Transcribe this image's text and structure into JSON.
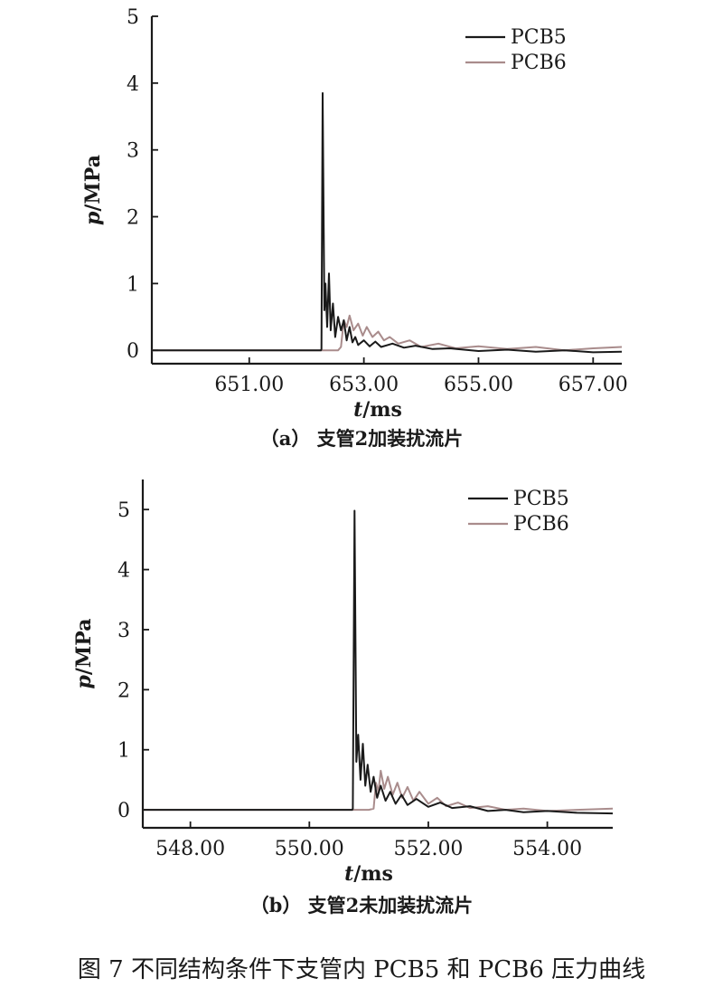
{
  "figure_caption": "图 7   不同结构条件下支管内 PCB5 和 PCB6 压力曲线",
  "chart_data": [
    {
      "type": "line",
      "caption": "（a） 支管2加装扰流片",
      "xlabel_italic": "t",
      "xlabel_unit": "/ms",
      "ylabel_italic": "p",
      "ylabel_unit": "/MPa",
      "xlim": [
        649.3,
        657.5
      ],
      "ylim": [
        -0.2,
        5.0
      ],
      "xticks": [
        651.0,
        653.0,
        655.0,
        657.0
      ],
      "xtick_labels": [
        "651.00",
        "653.00",
        "655.00",
        "657.00"
      ],
      "yticks": [
        0,
        1,
        2,
        3,
        4,
        5
      ],
      "ytick_labels": [
        "0",
        "1",
        "2",
        "3",
        "4",
        "5"
      ],
      "legend_position": "top-right",
      "series": [
        {
          "name": "PCB5",
          "color": "#1a1a1a",
          "points": [
            [
              649.3,
              0
            ],
            [
              652.25,
              0
            ],
            [
              652.26,
              0.02
            ],
            [
              652.28,
              3.85
            ],
            [
              652.31,
              0.6
            ],
            [
              652.33,
              1.0
            ],
            [
              652.36,
              0.35
            ],
            [
              652.39,
              1.15
            ],
            [
              652.42,
              0.3
            ],
            [
              652.46,
              0.7
            ],
            [
              652.5,
              0.2
            ],
            [
              652.55,
              0.5
            ],
            [
              652.6,
              0.3
            ],
            [
              652.65,
              0.45
            ],
            [
              652.7,
              0.15
            ],
            [
              652.75,
              0.35
            ],
            [
              652.8,
              0.12
            ],
            [
              652.85,
              0.2
            ],
            [
              652.9,
              0.08
            ],
            [
              653.0,
              0.15
            ],
            [
              653.1,
              0.06
            ],
            [
              653.2,
              0.13
            ],
            [
              653.3,
              0.05
            ],
            [
              653.5,
              0.1
            ],
            [
              653.7,
              0.04
            ],
            [
              653.9,
              0.07
            ],
            [
              654.2,
              0.02
            ],
            [
              654.5,
              0.03
            ],
            [
              655.0,
              -0.01
            ],
            [
              655.5,
              0.01
            ],
            [
              656.0,
              -0.02
            ],
            [
              656.5,
              0.0
            ],
            [
              657.0,
              -0.03
            ],
            [
              657.5,
              -0.02
            ]
          ]
        },
        {
          "name": "PCB6",
          "color": "#a98c8c",
          "points": [
            [
              649.3,
              0.0
            ],
            [
              652.3,
              0.0
            ],
            [
              652.55,
              0.0
            ],
            [
              652.6,
              0.05
            ],
            [
              652.65,
              0.45
            ],
            [
              652.7,
              0.35
            ],
            [
              652.75,
              0.52
            ],
            [
              652.82,
              0.3
            ],
            [
              652.9,
              0.4
            ],
            [
              652.98,
              0.22
            ],
            [
              653.05,
              0.35
            ],
            [
              653.15,
              0.2
            ],
            [
              653.25,
              0.28
            ],
            [
              653.35,
              0.15
            ],
            [
              653.45,
              0.2
            ],
            [
              653.6,
              0.1
            ],
            [
              653.8,
              0.15
            ],
            [
              654.0,
              0.05
            ],
            [
              654.3,
              0.1
            ],
            [
              654.6,
              0.03
            ],
            [
              655.0,
              0.06
            ],
            [
              655.5,
              0.02
            ],
            [
              656.0,
              0.05
            ],
            [
              656.5,
              0.0
            ],
            [
              657.0,
              0.03
            ],
            [
              657.5,
              0.05
            ]
          ]
        }
      ]
    },
    {
      "type": "line",
      "caption": "（b） 支管2未加装扰流片",
      "xlabel_italic": "t",
      "xlabel_unit": "/ms",
      "ylabel_italic": "p",
      "ylabel_unit": "/MPa",
      "xlim": [
        547.2,
        555.1
      ],
      "ylim": [
        -0.3,
        5.5
      ],
      "xticks": [
        548.0,
        550.0,
        552.0,
        554.0
      ],
      "xtick_labels": [
        "548.00",
        "550.00",
        "552.00",
        "554.00"
      ],
      "yticks": [
        0,
        1,
        2,
        3,
        4,
        5
      ],
      "ytick_labels": [
        "0",
        "1",
        "2",
        "3",
        "4",
        "5"
      ],
      "legend_position": "top-right",
      "series": [
        {
          "name": "PCB5",
          "color": "#1a1a1a",
          "points": [
            [
              547.2,
              0
            ],
            [
              550.72,
              0
            ],
            [
              550.73,
              0.02
            ],
            [
              550.76,
              4.98
            ],
            [
              550.79,
              0.8
            ],
            [
              550.82,
              1.25
            ],
            [
              550.86,
              0.5
            ],
            [
              550.9,
              1.1
            ],
            [
              550.94,
              0.4
            ],
            [
              550.98,
              0.75
            ],
            [
              551.03,
              0.3
            ],
            [
              551.08,
              0.55
            ],
            [
              551.14,
              0.2
            ],
            [
              551.2,
              0.4
            ],
            [
              551.28,
              0.15
            ],
            [
              551.36,
              0.3
            ],
            [
              551.45,
              0.1
            ],
            [
              551.55,
              0.25
            ],
            [
              551.65,
              0.08
            ],
            [
              551.8,
              0.18
            ],
            [
              552.0,
              0.05
            ],
            [
              552.2,
              0.12
            ],
            [
              552.4,
              0.03
            ],
            [
              552.7,
              0.06
            ],
            [
              553.0,
              -0.02
            ],
            [
              553.3,
              0.0
            ],
            [
              553.6,
              -0.04
            ],
            [
              554.0,
              -0.02
            ],
            [
              554.5,
              -0.05
            ],
            [
              555.1,
              -0.06
            ]
          ]
        },
        {
          "name": "PCB6",
          "color": "#a98c8c",
          "points": [
            [
              547.2,
              0.0
            ],
            [
              551.0,
              0.0
            ],
            [
              551.08,
              0.02
            ],
            [
              551.12,
              0.45
            ],
            [
              551.16,
              0.3
            ],
            [
              551.2,
              0.65
            ],
            [
              551.26,
              0.35
            ],
            [
              551.32,
              0.55
            ],
            [
              551.4,
              0.25
            ],
            [
              551.48,
              0.45
            ],
            [
              551.56,
              0.2
            ],
            [
              551.65,
              0.38
            ],
            [
              551.75,
              0.15
            ],
            [
              551.85,
              0.3
            ],
            [
              552.0,
              0.1
            ],
            [
              552.15,
              0.2
            ],
            [
              552.3,
              0.06
            ],
            [
              552.5,
              0.12
            ],
            [
              552.7,
              0.03
            ],
            [
              553.0,
              0.06
            ],
            [
              553.3,
              0.0
            ],
            [
              553.6,
              0.02
            ],
            [
              554.0,
              -0.02
            ],
            [
              554.5,
              0.0
            ],
            [
              555.1,
              0.02
            ]
          ]
        }
      ]
    }
  ]
}
